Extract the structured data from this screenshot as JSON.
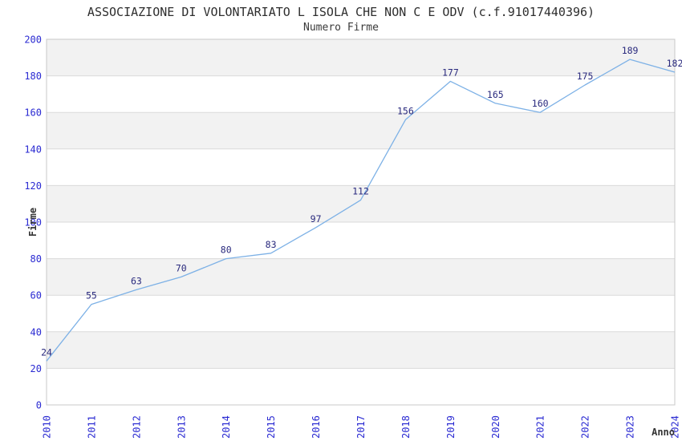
{
  "chart_data": {
    "type": "line",
    "title": "ASSOCIAZIONE DI VOLONTARIATO L ISOLA CHE NON C E ODV (c.f.91017440396)",
    "subtitle": "Numero Firme",
    "xlabel": "Anno",
    "ylabel": "Firme",
    "categories": [
      "2010",
      "2011",
      "2012",
      "2013",
      "2014",
      "2015",
      "2016",
      "2017",
      "2018",
      "2019",
      "2020",
      "2021",
      "2022",
      "2023",
      "2024"
    ],
    "series": [
      {
        "name": "Numero Firme",
        "values": [
          24,
          55,
          63,
          70,
          80,
          83,
          97,
          112,
          156,
          177,
          165,
          160,
          175,
          189,
          182
        ]
      }
    ],
    "ylim": [
      0,
      200
    ],
    "ytick_step": 20,
    "point_labels_visible": true,
    "grid": "horizontal-alternating-bands",
    "legend_position": "none",
    "colors": {
      "line": "#7db1e6",
      "tick_label": "#2a2ad2",
      "point_label": "#2a2a7e",
      "band": "#f2f2f2",
      "gridline": "#dadada",
      "plot_border": "#c8c8c8",
      "title_text": "#2e2e2e",
      "background": "#ffffff"
    }
  }
}
